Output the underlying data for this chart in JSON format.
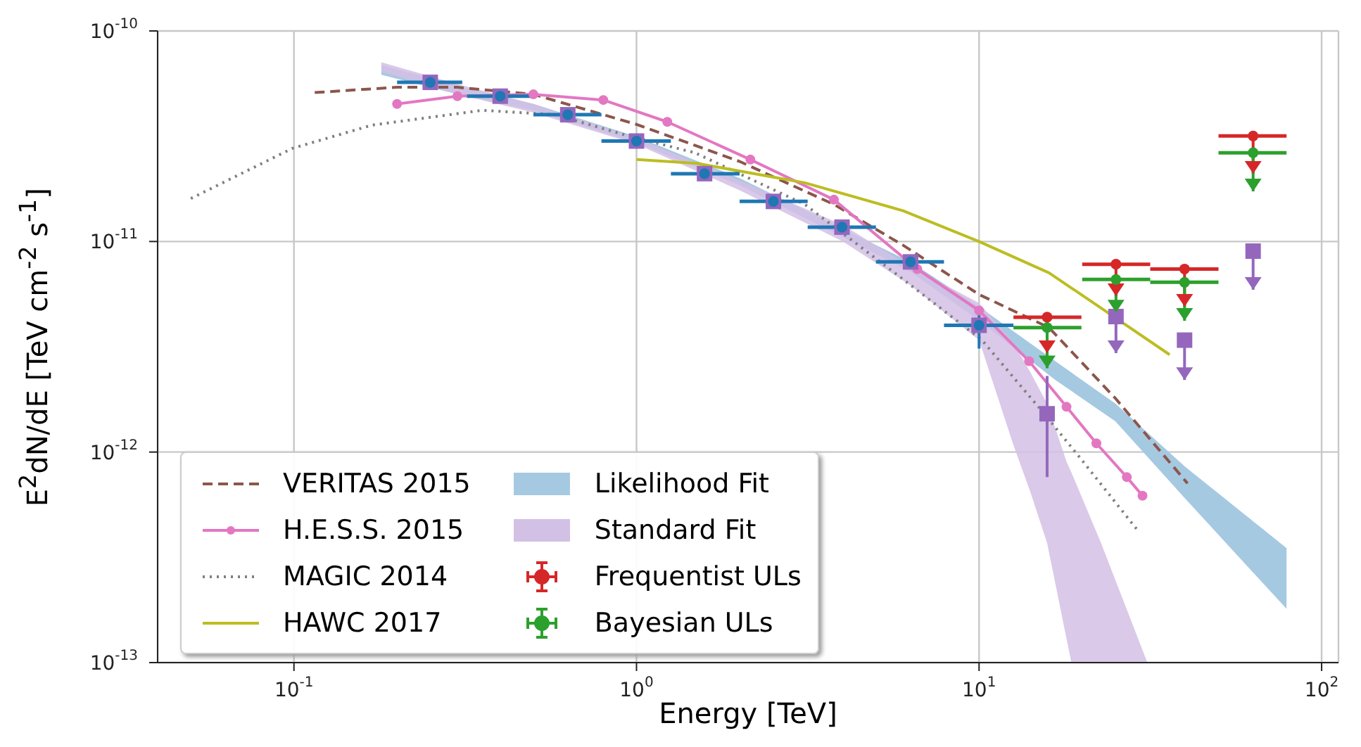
{
  "chart_data": {
    "type": "line",
    "xlabel": "Energy [TeV]",
    "ylabel": "E$^{2}$dN/dE [TeV cm$^{-2}$ s$^{-1}$]",
    "log": "xy",
    "grid": true,
    "legend": "bottom left",
    "xlim": [
      0.04,
      112
    ],
    "xticks": [
      {
        "value": 0.1,
        "label": "10$^{-1}$"
      },
      {
        "value": 1,
        "label": "10$^{0}$"
      },
      {
        "value": 10,
        "label": "10$^{1}$"
      },
      {
        "value": 100,
        "label": "10$^{2}$"
      }
    ],
    "ylim": [
      1e-13,
      1e-10
    ],
    "yticks": [
      {
        "value": 1e-13,
        "label": "10$^{-13}$"
      },
      {
        "value": 1e-12,
        "label": "10$^{-12}$"
      },
      {
        "value": 1e-11,
        "label": "10$^{-11}$"
      },
      {
        "value": 1e-10,
        "label": "10$^{-10}$"
      }
    ],
    "series": [
      {
        "name": "VERITAS 2015",
        "type": "line",
        "color": "#8c564b",
        "line_style": "dashed",
        "marker": "none",
        "x": [
          0.115,
          0.2,
          0.3,
          0.5,
          1,
          2,
          3.77,
          6,
          10,
          16,
          25,
          40.6
        ],
        "values": [
          5.1e-11,
          5.4e-11,
          5.4e-11,
          5e-11,
          3.6e-11,
          2.4e-11,
          1.5e-11,
          9.6e-12,
          5.6e-12,
          3.9e-12,
          1.8e-12,
          7.1e-13
        ]
      },
      {
        "name": "H.E.S.S. 2015",
        "type": "line",
        "color": "#e377c2",
        "line_style": "solid",
        "marker": "circle",
        "x": [
          0.2,
          0.3,
          0.5,
          0.8,
          1.23,
          2.15,
          3.77,
          6.6,
          10,
          14,
          18,
          22,
          27,
          30
        ],
        "values": [
          4.5e-11,
          4.9e-11,
          5e-11,
          4.7e-11,
          3.7e-11,
          2.45e-11,
          1.58e-11,
          7.4e-12,
          4.7e-12,
          2.7e-12,
          1.64e-12,
          1.1e-12,
          7.6e-13,
          6.2e-13
        ]
      },
      {
        "name": "MAGIC 2014",
        "type": "line",
        "color": "#7f7f7f",
        "line_style": "dotted",
        "marker": "none",
        "x": [
          0.05,
          0.099,
          0.169,
          0.355,
          0.58,
          0.93,
          1.48,
          3.1,
          5.8,
          10.2,
          15.6,
          19.6,
          29.2
        ],
        "values": [
          1.6e-11,
          2.77e-11,
          3.57e-11,
          4.2e-11,
          4e-11,
          3.2e-11,
          2.64e-11,
          1.5e-11,
          6.9e-12,
          3.4e-12,
          1.5e-12,
          9.5e-13,
          4.2e-13
        ]
      },
      {
        "name": "HAWC 2017",
        "type": "line",
        "color": "#bcbd22",
        "line_style": "solid",
        "marker": "none",
        "x": [
          1,
          1.5,
          3.1,
          6,
          10,
          16,
          23.5,
          36
        ],
        "values": [
          2.45e-11,
          2.35e-11,
          1.9e-11,
          1.4e-11,
          1e-11,
          7.1e-12,
          4.65e-12,
          2.9e-12
        ]
      },
      {
        "name": "Likelihood Fit",
        "type": "area",
        "color": "#a6c9e2",
        "x": [
          0.18,
          0.3,
          0.5,
          1,
          2,
          4,
          6.3,
          10,
          16.7,
          25,
          40,
          79
        ],
        "values": [
          null,
          null,
          null,
          null,
          null,
          null,
          null,
          null,
          null,
          null,
          null,
          null
        ],
        "lower": [
          6.2e-11,
          5e-11,
          4.2e-11,
          2.95e-11,
          1.85e-11,
          1.05e-11,
          7.2e-12,
          4.2e-12,
          2.2e-12,
          1.4e-12,
          6e-13,
          1.8e-13
        ],
        "upper": [
          6.9e-11,
          5.5e-11,
          4.5e-11,
          3.15e-11,
          2e-11,
          1.15e-11,
          8e-12,
          4.9e-12,
          2.7e-12,
          1.7e-12,
          8.5e-13,
          3.5e-13
        ]
      },
      {
        "name": "Standard Fit",
        "type": "area",
        "color": "#d3c0e5",
        "x": [
          0.18,
          0.3,
          0.5,
          1,
          2,
          4,
          6.3,
          10,
          12.6,
          14.1,
          15.8,
          18,
          18.6,
          22.7,
          31
        ],
        "values": [
          null,
          null,
          null,
          null,
          null,
          null,
          null,
          null,
          null,
          null,
          null,
          null,
          null,
          null,
          null
        ],
        "lower": [
          6.4e-11,
          5e-11,
          4.1e-11,
          2.9e-11,
          1.75e-11,
          1e-11,
          6.2e-12,
          3.4e-12,
          1.08e-12,
          6.5e-13,
          3.7e-13,
          1.3e-13,
          1e-13,
          1e-13,
          1e-13
        ],
        "upper": [
          7.1e-11,
          5.6e-11,
          4.5e-11,
          3.1e-11,
          1.95e-11,
          1.2e-11,
          7.6e-12,
          5.1e-12,
          3.3e-12,
          2.4e-12,
          1.7e-12,
          9e-13,
          8e-13,
          3.7e-13,
          1e-13
        ]
      },
      {
        "type": "scatter",
        "color": "#9467bd",
        "marker": "square",
        "x": [
          0.25,
          0.4,
          0.63,
          1.0,
          1.58,
          2.51,
          3.98,
          6.31,
          10,
          15.8,
          25.1,
          39.8,
          63.1
        ],
        "values": [
          5.7e-11,
          4.9e-11,
          4e-11,
          3e-11,
          2.1e-11,
          1.55e-11,
          1.17e-11,
          8e-12,
          4e-12,
          1.52e-12,
          4.4e-12,
          3.4e-12,
          9e-12
        ],
        "errors": [
          null,
          null,
          null,
          null,
          null,
          null,
          null,
          null,
          null,
          [
            7.6e-13,
            2.3e-12
          ],
          [
            2.95e-12,
            4.4e-12
          ],
          [
            2.2e-12,
            3.4e-12
          ],
          [
            5.9e-12,
            9e-12
          ]
        ]
      },
      {
        "type": "scatter",
        "color": "#1f77b4",
        "marker": "circle",
        "x": [
          0.25,
          0.4,
          0.63,
          1.0,
          1.58,
          2.51,
          3.98,
          6.31,
          10
        ],
        "values": [
          5.7e-11,
          4.9e-11,
          4e-11,
          3e-11,
          2.1e-11,
          1.55e-11,
          1.17e-11,
          8e-12,
          4e-12
        ],
        "errors": [
          null,
          null,
          null,
          null,
          null,
          null,
          null,
          null,
          [
            3.1e-12,
            4.9e-12
          ]
        ],
        "xerrors": [
          [
            0.2,
            0.31
          ],
          [
            0.32,
            0.5
          ],
          [
            0.5,
            0.79
          ],
          [
            0.79,
            1.26
          ],
          [
            1.26,
            2.0
          ],
          [
            2.0,
            3.16
          ],
          [
            3.16,
            5.0
          ],
          [
            5.0,
            7.9
          ],
          [
            7.9,
            12.6
          ]
        ]
      },
      {
        "name": "Frequentist ULs",
        "type": "scatter",
        "color": "#d62728",
        "marker": "circle",
        "x": [
          15.8,
          25.1,
          39.8,
          63.1
        ],
        "values": [
          4.37e-12,
          7.8e-12,
          7.4e-12,
          3.17e-11
        ],
        "errors": [
          [
            2.95e-12,
            4.37e-12
          ],
          [
            5.5e-12,
            7.8e-12
          ],
          [
            4.9e-12,
            7.4e-12
          ],
          [
            2.1e-11,
            3.17e-11
          ]
        ],
        "xerrors": [
          [
            12.6,
            19.9
          ],
          [
            20,
            31.6
          ],
          [
            31.6,
            50
          ],
          [
            50,
            79
          ]
        ]
      },
      {
        "name": "Bayesian ULs",
        "type": "scatter",
        "color": "#2ca02c",
        "marker": "circle",
        "x": [
          15.8,
          25.1,
          39.8,
          63.1
        ],
        "values": [
          3.9e-12,
          6.6e-12,
          6.4e-12,
          2.64e-11
        ],
        "errors": [
          [
            2.5e-12,
            3.9e-12
          ],
          [
            4.6e-12,
            6.6e-12
          ],
          [
            4.2e-12,
            6.4e-12
          ],
          [
            1.73e-11,
            2.64e-11
          ]
        ],
        "xerrors": [
          [
            12.6,
            19.9
          ],
          [
            20,
            31.6
          ],
          [
            31.6,
            50
          ],
          [
            50,
            79
          ]
        ]
      }
    ]
  }
}
